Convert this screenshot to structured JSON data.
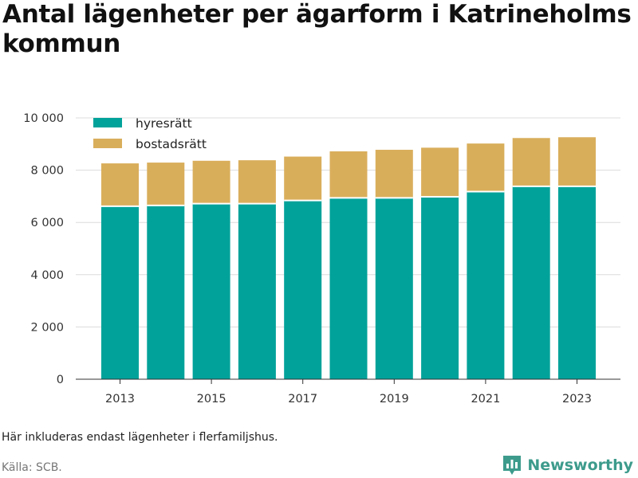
{
  "title": "Antal lägenheter per ägarform i Katrineholms kommun",
  "note": "Här inkluderas endast lägenheter i flerfamiljshus.",
  "source": "Källa: SCB.",
  "brand": {
    "name": "Newsworthy",
    "icon": "bar-chart-logo-icon",
    "color": "#3d9b8c"
  },
  "chart_data": {
    "type": "bar",
    "stacked": true,
    "categories": [
      "2013",
      "2014",
      "2015",
      "2016",
      "2017",
      "2018",
      "2019",
      "2020",
      "2021",
      "2022",
      "2023"
    ],
    "x_tick_labels": [
      "2013",
      "2015",
      "2017",
      "2019",
      "2021",
      "2023"
    ],
    "series": [
      {
        "name": "hyresrätt",
        "color": "#00a29a",
        "values": [
          6620,
          6650,
          6720,
          6720,
          6840,
          6940,
          6940,
          6980,
          7180,
          7380,
          7380
        ]
      },
      {
        "name": "bostadsrätt",
        "color": "#d9ae5b",
        "values": [
          1640,
          1640,
          1640,
          1660,
          1680,
          1780,
          1840,
          1880,
          1840,
          1850,
          1880
        ]
      }
    ],
    "ylim": [
      0,
      10000
    ],
    "y_ticks": [
      0,
      2000,
      4000,
      6000,
      8000,
      10000
    ],
    "y_tick_labels": [
      "0",
      "2 000",
      "4 000",
      "6 000",
      "8 000",
      "10 000"
    ],
    "xlabel": "",
    "ylabel": "",
    "grid": true,
    "legend": "top-left"
  }
}
